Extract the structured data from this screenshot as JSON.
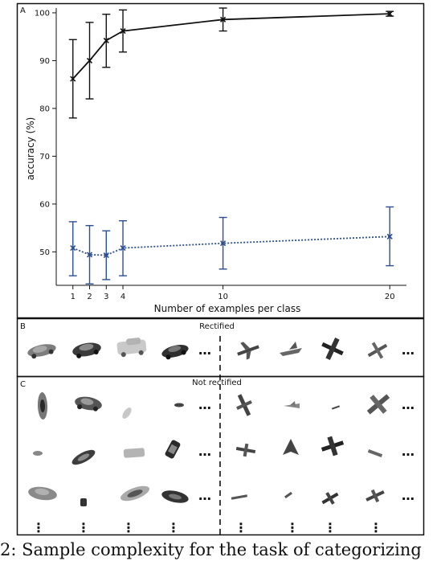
{
  "panels": {
    "a_label": "A",
    "b_label": "B",
    "c_label": "C",
    "b_title": "Rectified",
    "c_title": "Not rectified"
  },
  "ellipsis": "…",
  "vertical_ellipsis": "⋮",
  "caption": "2:  Sample complexity for the task of categorizing",
  "chart_data": {
    "type": "line",
    "xlabel": "Number of examples per class",
    "ylabel": "accuracy (%)",
    "x": [
      1,
      2,
      3,
      4,
      10,
      20
    ],
    "x_ticks": [
      1,
      2,
      3,
      4,
      10,
      20
    ],
    "y_ticks": [
      50,
      60,
      70,
      80,
      90,
      100
    ],
    "xlim": [
      0,
      21
    ],
    "ylim": [
      43,
      101
    ],
    "grid": false,
    "series": [
      {
        "color": "#111111",
        "line_style": "solid",
        "values": [
          86.2,
          90.0,
          94.2,
          96.2,
          98.6,
          99.8
        ],
        "lower": [
          78.0,
          82.0,
          88.6,
          91.8,
          96.2,
          99.3
        ],
        "upper": [
          94.4,
          98.0,
          99.7,
          100.6,
          101.0,
          100.3
        ]
      },
      {
        "color": "#2c4f8f",
        "line_style": "dotted",
        "values": [
          50.8,
          49.4,
          49.3,
          50.8,
          51.8,
          53.2
        ],
        "lower": [
          45.0,
          43.3,
          44.2,
          45.0,
          46.4,
          47.1
        ],
        "upper": [
          56.3,
          55.5,
          54.4,
          56.5,
          57.2,
          59.4
        ]
      }
    ]
  }
}
